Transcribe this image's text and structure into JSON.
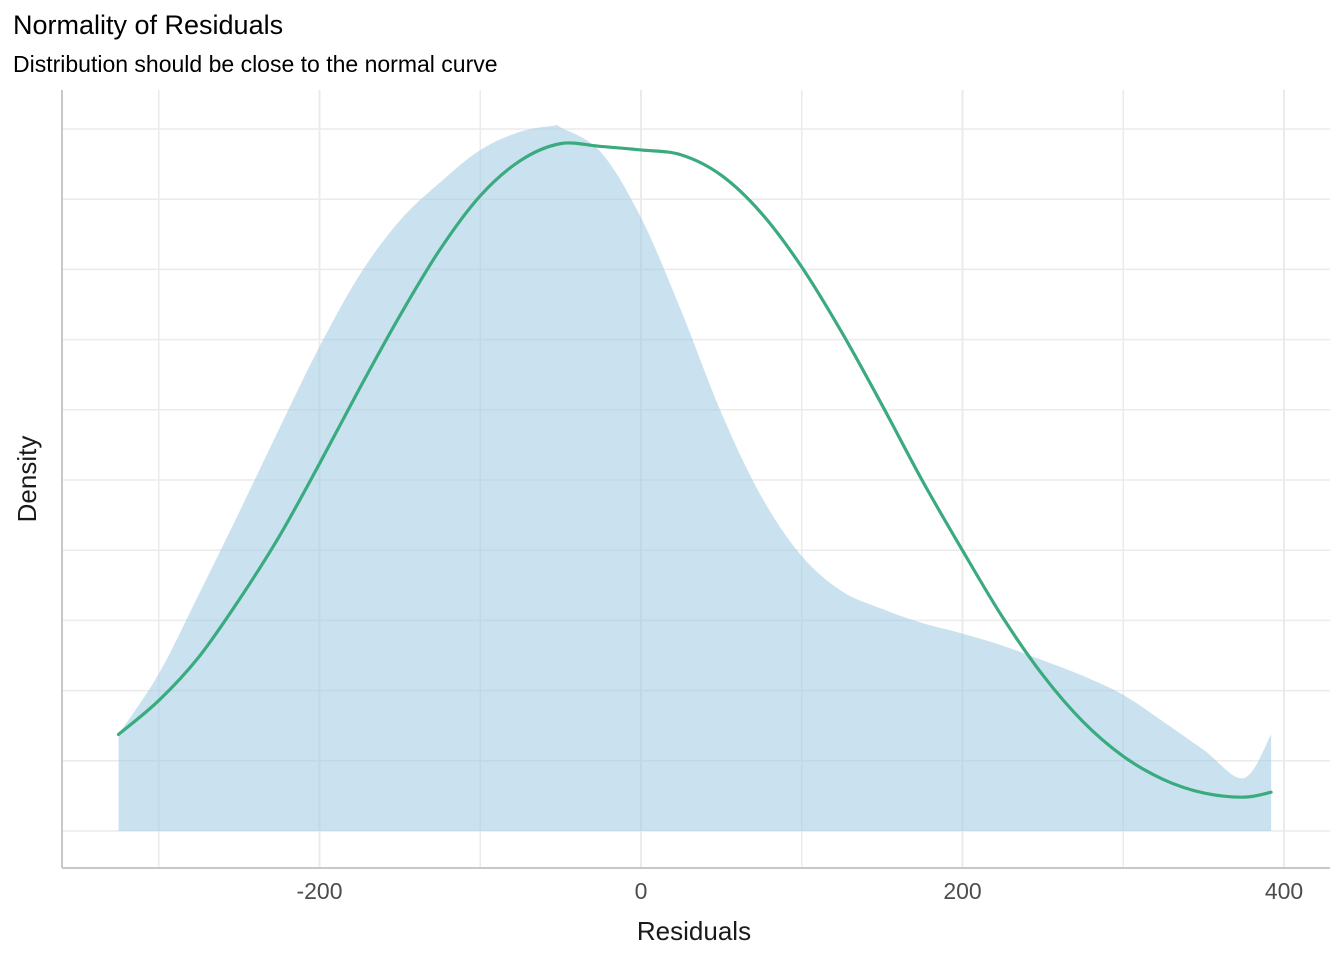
{
  "chart_data": {
    "type": "area",
    "title": "Normality of Residuals",
    "subtitle": "Distribution should be close to the normal curve",
    "xlabel": "Residuals",
    "ylabel": "Density",
    "xlim": [
      -360,
      425
    ],
    "ylim": [
      0,
      1
    ],
    "x_ticks": [
      -200,
      0,
      200,
      400
    ],
    "x_tick_labels": [
      "-200",
      "0",
      "200",
      "400"
    ],
    "y_tick_labels": [],
    "grid": true,
    "colors": {
      "density_fill": "#9ecae1",
      "density_fill_opacity": 0.55,
      "normal_curve": "#3aaa7f"
    },
    "series": [
      {
        "kind": "density-area",
        "x": [
          -325,
          -300,
          -275,
          -250,
          -225,
          -200,
          -175,
          -150,
          -125,
          -100,
          -75,
          -55,
          -50,
          -25,
          0,
          25,
          50,
          75,
          100,
          125,
          150,
          175,
          200,
          225,
          250,
          275,
          300,
          325,
          350,
          375,
          392
        ],
        "y": [
          0.137,
          0.223,
          0.336,
          0.452,
          0.571,
          0.687,
          0.789,
          0.866,
          0.92,
          0.966,
          0.992,
          1.0,
          0.998,
          0.963,
          0.87,
          0.738,
          0.593,
          0.474,
          0.39,
          0.34,
          0.315,
          0.295,
          0.28,
          0.263,
          0.242,
          0.22,
          0.193,
          0.155,
          0.115,
          0.075,
          0.137
        ]
      },
      {
        "kind": "normal-curve",
        "x": [
          -325,
          -300,
          -275,
          -250,
          -225,
          -200,
          -175,
          -150,
          -125,
          -100,
          -75,
          -50,
          -25,
          0,
          25,
          50,
          75,
          100,
          125,
          150,
          175,
          200,
          225,
          250,
          275,
          300,
          325,
          350,
          375,
          392
        ],
        "y": [
          0.137,
          0.185,
          0.247,
          0.328,
          0.418,
          0.521,
          0.628,
          0.731,
          0.825,
          0.901,
          0.951,
          0.975,
          0.971,
          0.966,
          0.959,
          0.93,
          0.876,
          0.8,
          0.707,
          0.604,
          0.497,
          0.398,
          0.303,
          0.221,
          0.155,
          0.106,
          0.073,
          0.054,
          0.048,
          0.055
        ]
      }
    ]
  }
}
